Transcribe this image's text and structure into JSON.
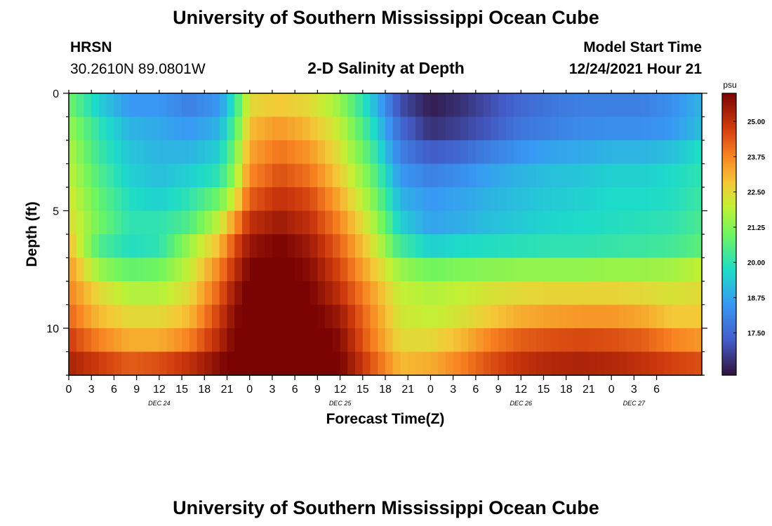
{
  "header": {
    "title": "University of Southern Mississippi Ocean Cube",
    "station": "HRSN",
    "coords": "30.2610N  89.0801W",
    "plot_title": "2-D Salinity at Depth",
    "start_label": "Model Start Time",
    "start_value": "12/24/2021 Hour 21"
  },
  "footer": {
    "title": "University of Southern Mississippi Ocean Cube"
  },
  "chart_data": {
    "type": "heatmap",
    "title": "2-D Salinity at Depth",
    "xlabel": "Forecast Time(Z)",
    "ylabel": "Depth (ft)",
    "x_hours": [
      0,
      84
    ],
    "x_tick_labels": [
      "0",
      "3",
      "6",
      "9",
      "12",
      "15",
      "18",
      "21",
      "0",
      "3",
      "6",
      "9",
      "12",
      "15",
      "18",
      "21",
      "0",
      "3",
      "6",
      "9",
      "12",
      "15",
      "18",
      "21",
      "0",
      "3",
      "6"
    ],
    "day_labels": [
      {
        "label": "DEC 24",
        "hour": 12
      },
      {
        "label": "DEC 25",
        "hour": 36
      },
      {
        "label": "DEC 26",
        "hour": 60
      },
      {
        "label": "DEC 27",
        "hour": 75
      }
    ],
    "y_range": [
      0,
      12
    ],
    "y_ticks": [
      0,
      5,
      10
    ],
    "y_tick_labels": [
      "0",
      "5",
      "10"
    ],
    "colorbar": {
      "unit": "psu",
      "range": [
        16,
        26
      ],
      "tick_values": [
        17.5,
        18.75,
        20.0,
        21.25,
        22.5,
        23.75,
        25.0
      ],
      "tick_labels": [
        "17.50",
        "18.75",
        "20.00",
        "21.25",
        "22.50",
        "23.75",
        "25.00"
      ]
    },
    "depth_layers_ft": [
      0.5,
      1.5,
      2.5,
      3.5,
      4.5,
      5.5,
      6.5,
      7.5,
      8.5,
      9.5,
      10.5,
      11.5
    ],
    "time_hours": [
      0,
      4,
      8,
      12,
      16,
      20,
      22,
      24,
      28,
      32,
      36,
      40,
      44,
      48,
      52,
      56,
      60,
      64,
      68,
      72,
      76,
      80,
      84
    ],
    "salinity_psu": [
      [
        21.0,
        19.5,
        18.5,
        18.5,
        18.0,
        18.5,
        20.0,
        22.5,
        22.8,
        22.5,
        21.5,
        19.5,
        17.0,
        16.2,
        16.5,
        17.0,
        17.5,
        17.8,
        18.0,
        18.0,
        18.0,
        18.3,
        19.0
      ],
      [
        21.5,
        20.0,
        19.0,
        18.8,
        18.5,
        19.0,
        20.5,
        23.0,
        23.5,
        23.0,
        22.0,
        20.0,
        17.5,
        16.5,
        16.8,
        17.2,
        17.8,
        18.0,
        18.2,
        18.3,
        18.3,
        18.5,
        19.2
      ],
      [
        21.8,
        20.2,
        19.3,
        19.0,
        19.0,
        19.5,
        21.0,
        23.3,
        24.0,
        23.5,
        22.3,
        20.5,
        18.0,
        17.2,
        17.5,
        18.0,
        18.4,
        18.7,
        18.8,
        19.0,
        19.0,
        19.2,
        19.8
      ],
      [
        22.0,
        20.5,
        19.5,
        19.2,
        19.5,
        20.0,
        21.5,
        23.7,
        24.5,
        24.0,
        22.7,
        21.0,
        18.5,
        18.0,
        18.3,
        18.7,
        19.0,
        19.2,
        19.3,
        19.5,
        19.5,
        19.7,
        20.0
      ],
      [
        22.3,
        20.8,
        19.8,
        19.5,
        20.0,
        21.0,
        22.3,
        24.3,
        25.0,
        24.6,
        23.2,
        21.5,
        19.0,
        18.5,
        18.7,
        19.0,
        19.2,
        19.4,
        19.5,
        19.7,
        19.7,
        19.8,
        20.2
      ],
      [
        22.5,
        21.0,
        20.0,
        20.0,
        20.5,
        22.0,
        23.5,
        25.0,
        25.5,
        25.0,
        23.7,
        22.0,
        19.5,
        18.7,
        18.9,
        19.2,
        19.4,
        19.6,
        19.7,
        19.8,
        19.9,
        20.0,
        20.4
      ],
      [
        23.0,
        20.5,
        19.8,
        20.0,
        21.5,
        23.0,
        24.5,
        25.6,
        26.0,
        25.5,
        24.2,
        22.5,
        20.3,
        19.5,
        19.7,
        19.8,
        19.9,
        20.0,
        20.0,
        20.1,
        20.2,
        20.3,
        20.7
      ],
      [
        23.5,
        21.5,
        20.8,
        21.0,
        22.0,
        23.8,
        25.0,
        26.0,
        26.2,
        25.8,
        24.6,
        23.0,
        21.5,
        21.0,
        21.2,
        21.3,
        21.4,
        21.4,
        21.4,
        21.5,
        21.5,
        21.6,
        22.0
      ],
      [
        23.8,
        22.5,
        21.8,
        21.8,
        22.5,
        24.3,
        25.5,
        26.2,
        26.3,
        26.0,
        25.0,
        23.5,
        22.0,
        21.8,
        22.0,
        22.3,
        22.5,
        22.6,
        22.6,
        22.6,
        22.5,
        22.3,
        22.5
      ],
      [
        24.2,
        23.0,
        22.5,
        22.5,
        23.0,
        24.8,
        25.8,
        26.3,
        26.4,
        26.2,
        25.5,
        23.8,
        22.2,
        22.0,
        22.3,
        22.8,
        23.2,
        23.4,
        23.5,
        23.5,
        23.3,
        22.8,
        22.8
      ],
      [
        24.8,
        23.8,
        23.2,
        23.2,
        23.8,
        25.2,
        26.0,
        26.4,
        26.5,
        26.4,
        25.8,
        24.0,
        22.5,
        22.5,
        23.0,
        23.8,
        24.3,
        24.5,
        24.6,
        24.5,
        24.3,
        23.8,
        23.5
      ],
      [
        25.3,
        24.8,
        24.3,
        24.5,
        25.0,
        25.8,
        26.3,
        26.5,
        26.6,
        26.5,
        26.0,
        24.5,
        23.0,
        23.2,
        23.8,
        24.5,
        25.0,
        25.2,
        25.3,
        25.2,
        25.0,
        24.7,
        24.5
      ]
    ]
  }
}
